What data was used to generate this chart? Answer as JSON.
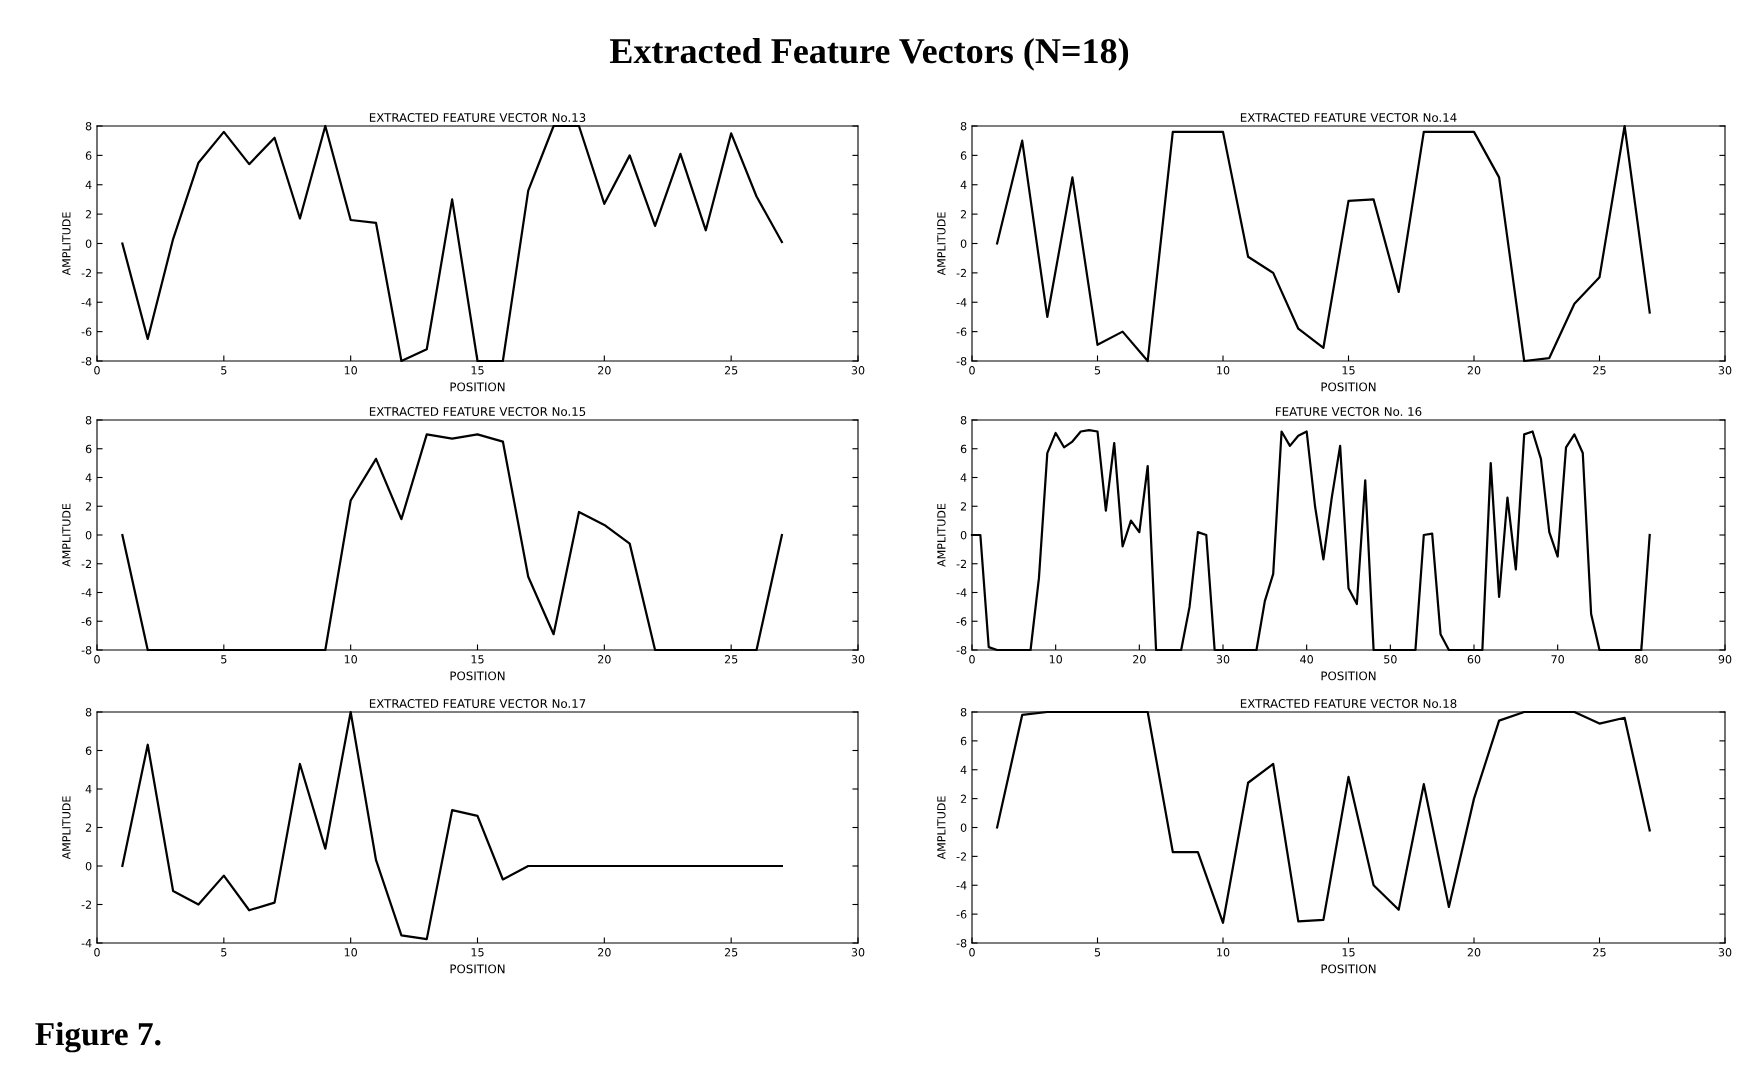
{
  "chart_data": [
    {
      "type": "line",
      "title": "EXTRACTED FEATURE VECTOR No.13",
      "xlabel": "POSITION",
      "ylabel": "AMPLITUDE",
      "annotations": [
        "Extracted Feature Vectors (N=18)",
        "Figure 7."
      ],
      "x": [
        1,
        2,
        3,
        4,
        5,
        6,
        7,
        8,
        9,
        10,
        11,
        12,
        13,
        14,
        15,
        16,
        17,
        18,
        19,
        20,
        21,
        22,
        23,
        24,
        25,
        26,
        27
      ],
      "series": [
        {
          "color": "#000000",
          "values": [
            0,
            -6.5,
            0.3,
            5.5,
            7.6,
            5.4,
            7.2,
            1.7,
            8,
            1.6,
            1.4,
            -8,
            -7.2,
            3,
            -8,
            -8,
            3.6,
            8,
            8,
            2.7,
            6,
            1.2,
            6.1,
            0.9,
            7.5,
            3.2,
            0.1
          ]
        }
      ],
      "xlim": [
        0,
        30
      ],
      "ylim": [
        -8,
        8
      ],
      "xticks": [
        0,
        5,
        10,
        15,
        20,
        25,
        30
      ],
      "yticks": [
        -8,
        -6,
        -4,
        -2,
        0,
        2,
        4,
        6,
        8
      ],
      "grid": false
    },
    {
      "type": "line",
      "title": "EXTRACTED FEATURE VECTOR No.14",
      "xlabel": "POSITION",
      "ylabel": "AMPLITUDE",
      "x": [
        1,
        2,
        3,
        4,
        5,
        6,
        7,
        8,
        9,
        10,
        11,
        12,
        13,
        14,
        15,
        16,
        17,
        18,
        19,
        20,
        21,
        22,
        23,
        24,
        25,
        26,
        27
      ],
      "series": [
        {
          "color": "#000000",
          "values": [
            0,
            7,
            -5,
            4.5,
            -6.9,
            -6,
            -8,
            7.6,
            7.6,
            7.6,
            -0.9,
            -2,
            -5.8,
            -7.1,
            2.9,
            3,
            -3.3,
            7.6,
            7.6,
            7.6,
            4.5,
            -8,
            -7.8,
            -4.1,
            -2.3,
            8,
            -4.7
          ]
        }
      ],
      "xlim": [
        0,
        30
      ],
      "ylim": [
        -8,
        8
      ],
      "xticks": [
        0,
        5,
        10,
        15,
        20,
        25,
        30
      ],
      "yticks": [
        -8,
        -6,
        -4,
        -2,
        0,
        2,
        4,
        6,
        8
      ],
      "grid": false
    },
    {
      "type": "line",
      "title": "EXTRACTED FEATURE VECTOR No.15",
      "xlabel": "POSITION",
      "ylabel": "AMPLITUDE",
      "x": [
        1,
        2,
        3,
        4,
        5,
        6,
        7,
        8,
        9,
        10,
        11,
        12,
        13,
        14,
        15,
        16,
        17,
        18,
        19,
        20,
        21,
        22,
        23,
        24,
        25,
        26,
        27
      ],
      "series": [
        {
          "color": "#000000",
          "values": [
            0,
            -8,
            -8,
            -8,
            -8,
            -8,
            -8,
            -8,
            -8,
            2.4,
            5.3,
            1.1,
            7,
            6.7,
            7,
            6.5,
            -2.9,
            -6.9,
            1.6,
            0.7,
            -0.6,
            -8,
            -8,
            -8,
            -8,
            -8,
            0
          ]
        }
      ],
      "xlim": [
        0,
        30
      ],
      "ylim": [
        -8,
        8
      ],
      "xticks": [
        0,
        5,
        10,
        15,
        20,
        25,
        30
      ],
      "yticks": [
        -8,
        -6,
        -4,
        -2,
        0,
        2,
        4,
        6,
        8
      ],
      "grid": false
    },
    {
      "type": "line",
      "title": "FEATURE VECTOR No. 16",
      "xlabel": "POSITION",
      "ylabel": "AMPLITUDE",
      "x": [
        0,
        1,
        2,
        3,
        4,
        5,
        6,
        7,
        8,
        9,
        10,
        11,
        12,
        13,
        14,
        15,
        16,
        17,
        18,
        19,
        20,
        21,
        22,
        23,
        24,
        25,
        26,
        27,
        28,
        29,
        30,
        31,
        32,
        33,
        34,
        35,
        36,
        37,
        38,
        39,
        40,
        41,
        42,
        43,
        44,
        45,
        46,
        47,
        48,
        49,
        50,
        51,
        52,
        53,
        54,
        55,
        56,
        57,
        58,
        59,
        60,
        61,
        62,
        63,
        64,
        65,
        66,
        67,
        68,
        69,
        70,
        71,
        72,
        73,
        74,
        75,
        76,
        77,
        78,
        79,
        80,
        81
      ],
      "series": [
        {
          "color": "#000000",
          "values": [
            0,
            0,
            -7.8,
            -8,
            -8,
            -8,
            -8,
            -8,
            -3,
            5.7,
            7.1,
            6.1,
            6.5,
            7.2,
            7.3,
            7.2,
            1.7,
            6.4,
            -0.8,
            1,
            0.2,
            4.8,
            -8,
            -8,
            -8,
            -8,
            -5,
            0.2,
            0,
            -8,
            -8,
            -8,
            -8,
            -8,
            -8,
            -4.6,
            -2.7,
            7.2,
            6.2,
            6.9,
            7.2,
            2,
            -1.7,
            2.6,
            6.2,
            -3.7,
            -4.8,
            3.8,
            -8,
            -8,
            -8,
            -8,
            -8,
            -8,
            0,
            0.1,
            -6.9,
            -8,
            -8,
            -8,
            -8,
            -8,
            5,
            -4.3,
            2.6,
            -2.4,
            7,
            7.2,
            5.3,
            0.2,
            -1.5,
            6.1,
            7,
            5.7,
            -5.5,
            -8,
            -8,
            -8,
            -8,
            -8,
            -8,
            0
          ]
        }
      ],
      "xlim": [
        0,
        90
      ],
      "ylim": [
        -8,
        8
      ],
      "xticks": [
        0,
        10,
        20,
        30,
        40,
        50,
        60,
        70,
        80,
        90
      ],
      "yticks": [
        -8,
        -6,
        -4,
        -2,
        0,
        2,
        4,
        6,
        8
      ],
      "grid": false
    },
    {
      "type": "line",
      "title": "EXTRACTED FEATURE VECTOR No.17",
      "xlabel": "POSITION",
      "ylabel": "AMPLITUDE",
      "x": [
        1,
        2,
        3,
        4,
        5,
        6,
        7,
        8,
        9,
        10,
        11,
        12,
        13,
        14,
        15,
        16,
        17,
        18,
        19,
        20,
        21,
        22,
        23,
        24,
        25,
        26,
        27
      ],
      "series": [
        {
          "color": "#000000",
          "values": [
            0,
            6.3,
            -1.3,
            -2,
            -0.5,
            -2.3,
            -1.9,
            5.3,
            0.9,
            8,
            0.3,
            -3.6,
            -3.8,
            2.9,
            2.6,
            -0.7,
            0,
            0,
            0,
            0,
            0,
            0,
            0,
            0,
            0,
            0,
            0
          ]
        }
      ],
      "xlim": [
        0,
        30
      ],
      "ylim": [
        -4,
        8
      ],
      "xticks": [
        0,
        5,
        10,
        15,
        20,
        25,
        30
      ],
      "yticks": [
        -4,
        -2,
        0,
        2,
        4,
        6,
        8
      ],
      "grid": false
    },
    {
      "type": "line",
      "title": "EXTRACTED FEATURE VECTOR No.18",
      "xlabel": "POSITION",
      "ylabel": "AMPLITUDE",
      "x": [
        1,
        2,
        3,
        4,
        5,
        6,
        7,
        8,
        9,
        10,
        11,
        12,
        13,
        14,
        15,
        16,
        17,
        18,
        19,
        20,
        21,
        22,
        23,
        24,
        25,
        26,
        27
      ],
      "series": [
        {
          "color": "#000000",
          "values": [
            0,
            7.8,
            8,
            8,
            8,
            8,
            8,
            -1.7,
            -1.7,
            -6.6,
            3.1,
            4.4,
            -6.5,
            -6.4,
            3.5,
            -4,
            -5.7,
            3,
            -5.5,
            2,
            7.4,
            8,
            8,
            8,
            7.2,
            7.6,
            -0.2
          ]
        }
      ],
      "xlim": [
        0,
        30
      ],
      "ylim": [
        -8,
        8
      ],
      "xticks": [
        0,
        5,
        10,
        15,
        20,
        25,
        30
      ],
      "yticks": [
        -8,
        -6,
        -4,
        -2,
        0,
        2,
        4,
        6,
        8
      ],
      "grid": false
    }
  ]
}
